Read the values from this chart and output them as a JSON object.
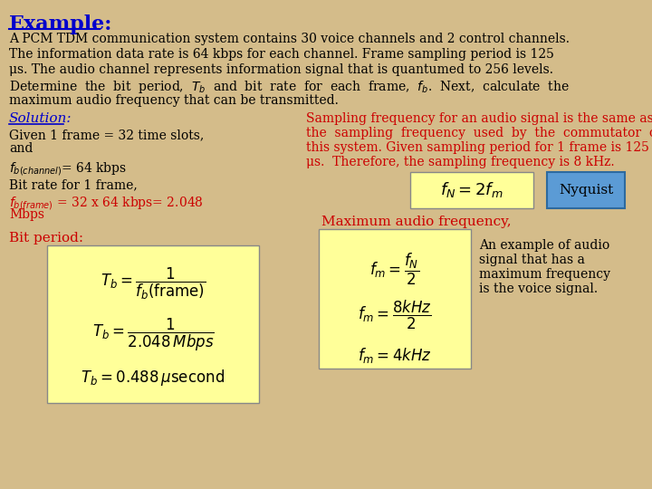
{
  "bg_color": "#d4bc8a",
  "title": "Example:",
  "title_color": "#0000cc",
  "title_fontsize": 16,
  "solution_label": "Solution:",
  "solution_color": "#0000cc",
  "left_col_text4_color": "#cc0000",
  "bit_period_label": "Bit period:",
  "bit_period_color": "#cc0000",
  "right_col_color": "#cc0000",
  "nyquist_box_color": "#5b9bd5",
  "nyquist_text": "Nyquist",
  "max_audio_text": "Maximum audio frequency,",
  "max_audio_color": "#cc0000",
  "note_text": "An example of audio\nsignal that has a\nmaximum frequency\nis the voice signal.",
  "formula_bg": "#ffff99",
  "text_color": "#000000",
  "fontsize_body": 10
}
